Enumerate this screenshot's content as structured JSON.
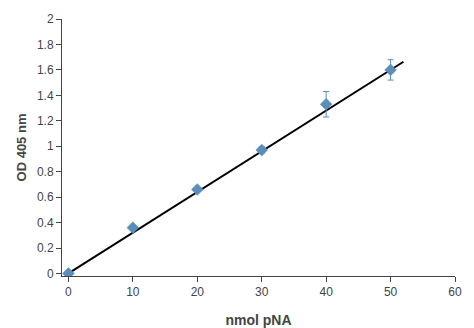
{
  "chart_data": {
    "type": "scatter",
    "xlabel": "nmol pNA",
    "ylabel": "OD 405 nm",
    "series": [
      {
        "type": "line",
        "x": [
          0,
          52
        ],
        "values": [
          0.0,
          1.664
        ],
        "color": "#000000",
        "line_style": "solid"
      },
      {
        "type": "scatter",
        "x": [
          0,
          10,
          20,
          30,
          40,
          50
        ],
        "values": [
          0.0,
          0.36,
          0.66,
          0.97,
          1.33,
          1.6
        ],
        "yerr": [
          0.0,
          0.0,
          0.0,
          0.025,
          0.1,
          0.08
        ],
        "color": "#5b8db8",
        "marker": "diamond"
      }
    ],
    "xlim": [
      -1,
      60
    ],
    "ylim": [
      -0.02,
      2.0
    ],
    "xticks": [
      0,
      10,
      20,
      30,
      40,
      50,
      60
    ],
    "yticks": [
      0,
      0.2,
      0.4,
      0.6,
      0.8,
      1,
      1.2,
      1.4,
      1.6,
      1.8,
      2
    ],
    "grid": false
  }
}
